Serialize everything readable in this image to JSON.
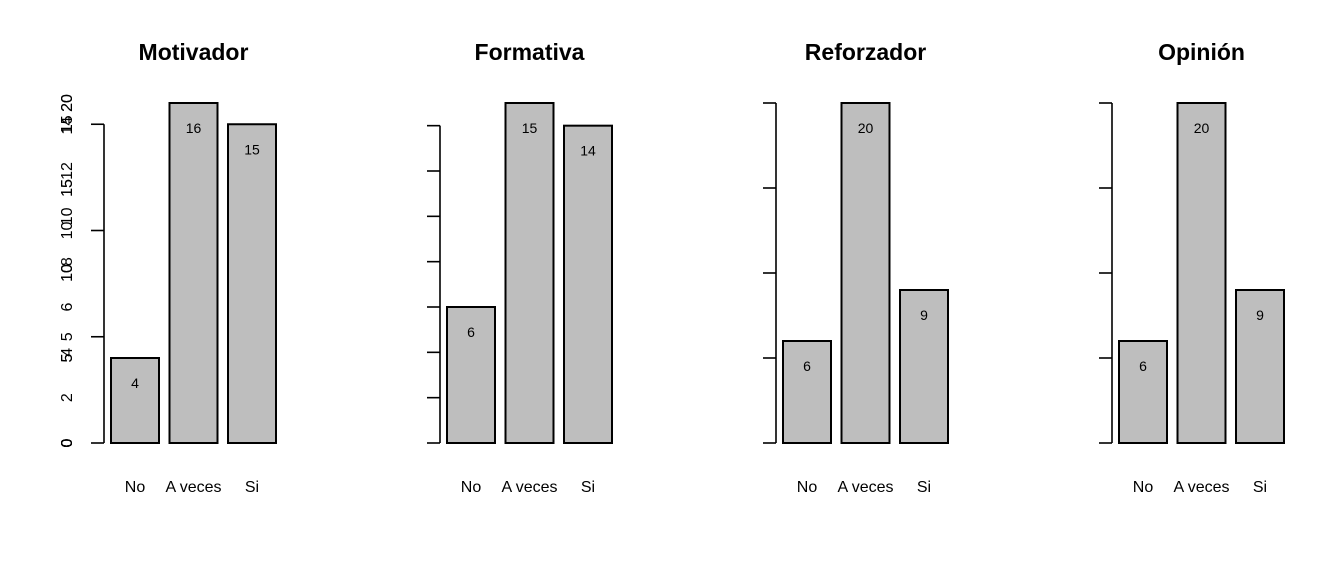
{
  "colors": {
    "bar_fill": "#bebebe",
    "bar_stroke": "#000000",
    "background": "#ffffff"
  },
  "chart_data": [
    {
      "type": "bar",
      "title": "Motivador",
      "categories": [
        "No",
        "A veces",
        "Si"
      ],
      "values": [
        4,
        16,
        15
      ],
      "value_labels": [
        "4",
        "16",
        "15"
      ],
      "yticks": [
        0,
        5,
        10,
        15
      ],
      "ylim": [
        0,
        16
      ],
      "xlabel": "",
      "ylabel": "",
      "grid": false
    },
    {
      "type": "bar",
      "title": "Formativa",
      "categories": [
        "No",
        "A veces",
        "Si"
      ],
      "values": [
        6,
        15,
        14
      ],
      "value_labels": [
        "6",
        "15",
        "14"
      ],
      "yticks": [
        0,
        2,
        4,
        6,
        8,
        10,
        12,
        14
      ],
      "ylim": [
        0,
        15
      ],
      "xlabel": "",
      "ylabel": "",
      "grid": false
    },
    {
      "type": "bar",
      "title": "Reforzador",
      "categories": [
        "No",
        "A veces",
        "Si"
      ],
      "values": [
        6,
        20,
        9
      ],
      "value_labels": [
        "6",
        "20",
        "9"
      ],
      "yticks": [
        0,
        5,
        10,
        15,
        20
      ],
      "ylim": [
        0,
        20
      ],
      "xlabel": "",
      "ylabel": "",
      "grid": false
    },
    {
      "type": "bar",
      "title": "Opinión",
      "categories": [
        "No",
        "A veces",
        "Si"
      ],
      "values": [
        6,
        20,
        9
      ],
      "value_labels": [
        "6",
        "20",
        "9"
      ],
      "yticks": [
        0,
        5,
        10,
        15,
        20
      ],
      "ylim": [
        0,
        20
      ],
      "xlabel": "",
      "ylabel": "",
      "grid": false
    }
  ]
}
